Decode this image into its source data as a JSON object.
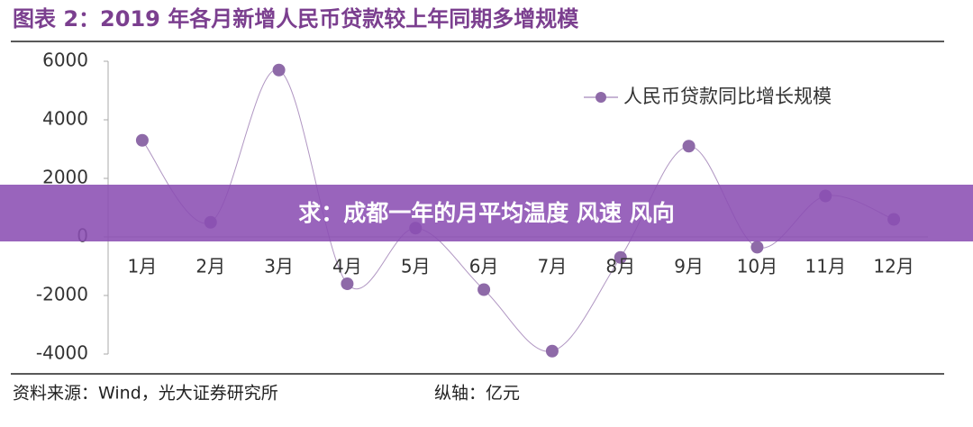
{
  "chart_data": {
    "type": "line",
    "title": "图表 2：2019 年各月新增人民币贷款较上年同期多增规模",
    "categories": [
      "1月",
      "2月",
      "3月",
      "4月",
      "5月",
      "6月",
      "7月",
      "8月",
      "9月",
      "10月",
      "11月",
      "12月"
    ],
    "series": [
      {
        "name": "人民币贷款同比增长规模",
        "color": "#8e6aa8",
        "values": [
          3300,
          500,
          5700,
          -1600,
          300,
          -1800,
          -3900,
          -700,
          3100,
          -350,
          1400,
          600
        ]
      }
    ],
    "ylim": [
      -4000,
      6000
    ],
    "yticks": [
      -4000,
      -2000,
      0,
      2000,
      4000,
      6000
    ],
    "legend": "top-right",
    "smooth": true,
    "source": "资料来源：Wind，光大证券研究所",
    "unit_note": "纵轴：亿元"
  },
  "banner": "求：成都一年的月平均温度 风速 风向"
}
